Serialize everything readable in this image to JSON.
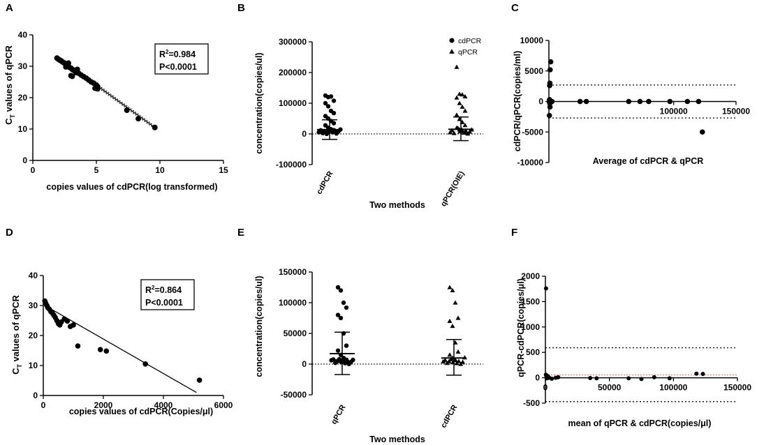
{
  "chart_data": [
    {
      "panel": "A",
      "type": "scatter",
      "xlabel": "copies values of cdPCR(log transformed)",
      "ylabel": "C",
      "ylabel_sub": "T",
      "ylabel_rest": " values of qPCR",
      "xlim": [
        0,
        15
      ],
      "ylim": [
        0,
        40
      ],
      "xticks": [
        "0",
        "5",
        "10",
        "15"
      ],
      "yticks": [
        "0",
        "10",
        "20",
        "30",
        "40"
      ],
      "fit": {
        "x": [
          2.0,
          9.7
        ],
        "y": [
          32.8,
          10.2
        ],
        "style": "solid-with-dotted-band"
      },
      "stats": {
        "r2": "=0.984",
        "p": "P<0.0001"
      },
      "points": [
        [
          1.9,
          32.6
        ],
        [
          2.0,
          32.3
        ],
        [
          2.1,
          32.0
        ],
        [
          2.2,
          31.8
        ],
        [
          2.3,
          31.5
        ],
        [
          2.4,
          31.2
        ],
        [
          2.5,
          31.0
        ],
        [
          2.6,
          30.6
        ],
        [
          2.7,
          30.3
        ],
        [
          2.8,
          30.0
        ],
        [
          2.9,
          29.6
        ],
        [
          3.0,
          29.4
        ],
        [
          3.1,
          29.0
        ],
        [
          2.6,
          29.8
        ],
        [
          2.8,
          31.0
        ],
        [
          3.2,
          28.8
        ],
        [
          3.3,
          28.5
        ],
        [
          3.4,
          28.0
        ],
        [
          3.6,
          27.8
        ],
        [
          3.8,
          27.2
        ],
        [
          4.0,
          26.7
        ],
        [
          4.2,
          26.2
        ],
        [
          4.4,
          25.6
        ],
        [
          4.6,
          25.0
        ],
        [
          4.8,
          24.6
        ],
        [
          5.0,
          24.0
        ],
        [
          5.1,
          23.5
        ],
        [
          5.1,
          22.8
        ],
        [
          4.9,
          23.0
        ],
        [
          3.0,
          27.0
        ],
        [
          3.1,
          26.8
        ],
        [
          3.5,
          29.0
        ],
        [
          7.4,
          16.0
        ],
        [
          8.3,
          13.3
        ],
        [
          9.6,
          10.5
        ]
      ]
    },
    {
      "panel": "B",
      "type": "scatter-dot-plot",
      "title": "",
      "xlabel": "Two methods",
      "ylabel": "concentration(copies/ul)",
      "categories": [
        "cdPCR",
        "qPCR(OIE)"
      ],
      "ylim": [
        -100000,
        300000
      ],
      "yticks": [
        "-100000",
        "0",
        "100000",
        "200000",
        "300000"
      ],
      "legend": [
        {
          "name": "cdPCR",
          "marker": "circle"
        },
        {
          "name": "qPCR",
          "marker": "triangle"
        }
      ],
      "series": [
        {
          "name": "cdPCR",
          "mean": 14000,
          "sd_low": -18000,
          "sd_high": 46000,
          "values": [
            125000,
            120000,
            122000,
            108000,
            100000,
            90000,
            75000,
            68000,
            58000,
            50000,
            42000,
            35000,
            28000,
            20000,
            15000,
            12000,
            8000,
            6000,
            4000,
            3000,
            2000,
            1500,
            1000,
            800,
            600,
            400,
            200,
            100,
            50,
            10
          ]
        },
        {
          "name": "qPCR",
          "mean": 15000,
          "sd_low": -22000,
          "sd_high": 55000,
          "values": [
            218000,
            130000,
            128000,
            122000,
            118000,
            100000,
            88000,
            75000,
            62000,
            48000,
            38000,
            28000,
            20000,
            14000,
            10000,
            7000,
            5000,
            3000,
            2000,
            1000,
            800,
            600,
            400,
            200,
            100,
            50,
            10
          ]
        }
      ]
    },
    {
      "panel": "C",
      "type": "bland-altman",
      "xlabel": "Average of cdPCR & qPCR",
      "ylabel": "cdPCR/qPCR(copies/ml)",
      "xlim": [
        0,
        150000
      ],
      "ylim": [
        -10000,
        10000
      ],
      "xticks": [
        "100000",
        "150000"
      ],
      "yticks": [
        "-10000",
        "-5000",
        "0",
        "5000",
        "10000"
      ],
      "limits": [
        2700,
        -2700
      ],
      "bias": 0,
      "points": [
        [
          1500,
          6500
        ],
        [
          1000,
          5200
        ],
        [
          800,
          3000
        ],
        [
          600,
          2600
        ],
        [
          500,
          300
        ],
        [
          300,
          0
        ],
        [
          700,
          -300
        ],
        [
          900,
          -900
        ],
        [
          1200,
          -200
        ],
        [
          400,
          -2300
        ],
        [
          1500,
          0
        ],
        [
          2000,
          0
        ],
        [
          2500,
          0
        ],
        [
          25000,
          0
        ],
        [
          30000,
          0
        ],
        [
          64000,
          0
        ],
        [
          73000,
          0
        ],
        [
          80000,
          0
        ],
        [
          97000,
          0
        ],
        [
          111000,
          0
        ],
        [
          120000,
          0
        ],
        [
          123000,
          -5000
        ]
      ]
    },
    {
      "panel": "D",
      "type": "scatter",
      "xlabel": "copies values of cdPCR(Copies/μl)",
      "ylabel": "C",
      "ylabel_sub": "T",
      "ylabel_rest": " values of qPCR",
      "xlim": [
        0,
        6000
      ],
      "ylim": [
        0,
        40
      ],
      "xticks": [
        "0",
        "2000",
        "4000",
        "6000"
      ],
      "yticks": [
        "0",
        "10",
        "20",
        "30",
        "40"
      ],
      "fit": {
        "x": [
          0,
          5100
        ],
        "y": [
          30.3,
          1.0
        ],
        "style": "solid"
      },
      "stats": {
        "r2": "=0.864",
        "p": "P<0.0001"
      },
      "points": [
        [
          50,
          31.5
        ],
        [
          80,
          30.8
        ],
        [
          120,
          30.0
        ],
        [
          150,
          29.3
        ],
        [
          200,
          28.8
        ],
        [
          250,
          28.0
        ],
        [
          300,
          27.5
        ],
        [
          350,
          26.8
        ],
        [
          400,
          26.0
        ],
        [
          450,
          25.0
        ],
        [
          500,
          24.0
        ],
        [
          550,
          23.5
        ],
        [
          600,
          24.5
        ],
        [
          700,
          25.5
        ],
        [
          800,
          24.8
        ],
        [
          900,
          23.0
        ],
        [
          1000,
          23.5
        ],
        [
          1150,
          16.5
        ],
        [
          1900,
          15.3
        ],
        [
          2100,
          14.8
        ],
        [
          3400,
          10.5
        ],
        [
          5200,
          5.1
        ]
      ]
    },
    {
      "panel": "E",
      "type": "scatter-dot-plot",
      "xlabel": "Two methods",
      "ylabel": "concentration(copies/ul)",
      "categories": [
        "qPCR",
        "cdPCR"
      ],
      "ylim": [
        -50000,
        150000
      ],
      "yticks": [
        "-50000",
        "0",
        "50000",
        "100000",
        "150000"
      ],
      "series": [
        {
          "name": "qPCR",
          "marker": "circle",
          "mean": 17000,
          "sd_low": -17000,
          "sd_high": 52000,
          "values": [
            125000,
            120000,
            100000,
            92000,
            80000,
            75000,
            50000,
            30000,
            22000,
            15000,
            10000,
            7000,
            5000,
            3000,
            2000,
            1500,
            1000,
            800,
            600,
            400,
            200,
            100,
            50,
            10
          ]
        },
        {
          "name": "cdPCR",
          "marker": "triangle",
          "mean": 10000,
          "sd_low": -18000,
          "sd_high": 40000,
          "values": [
            125000,
            120000,
            100000,
            75000,
            70000,
            62000,
            35000,
            20000,
            15000,
            10000,
            7000,
            5000,
            3000,
            2000,
            1500,
            1000,
            800,
            600,
            400,
            200,
            100,
            50,
            10
          ]
        }
      ]
    },
    {
      "panel": "F",
      "type": "bland-altman",
      "xlabel": "mean of qPCR & cdPCR(copies/μl)",
      "ylabel": "qPCR-cdPCR(copies/μl)",
      "xlim": [
        0,
        150000
      ],
      "ylim": [
        -500,
        2000
      ],
      "xticks": [
        "0",
        "50000",
        "100000",
        "150000"
      ],
      "yticks": [
        "-500",
        "0",
        "500",
        "1000",
        "1500",
        "2000"
      ],
      "limits": [
        590,
        -470
      ],
      "bias": 55,
      "points": [
        [
          500,
          1760
        ],
        [
          400,
          60
        ],
        [
          800,
          20
        ],
        [
          1200,
          -10
        ],
        [
          2000,
          30
        ],
        [
          3000,
          0
        ],
        [
          5000,
          -20
        ],
        [
          8000,
          0
        ],
        [
          10000,
          10
        ],
        [
          35000,
          -5
        ],
        [
          40000,
          -10
        ],
        [
          65000,
          -10
        ],
        [
          75000,
          -25
        ],
        [
          85000,
          10
        ],
        [
          97000,
          -10
        ],
        [
          118000,
          80
        ],
        [
          123000,
          75
        ]
      ]
    }
  ]
}
